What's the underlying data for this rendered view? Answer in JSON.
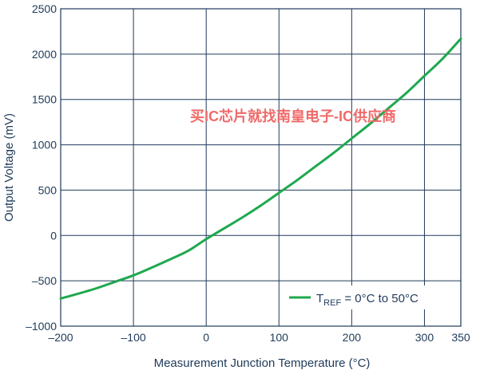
{
  "chart_data": {
    "type": "line",
    "xlabel": "Measurement Junction Temperature (°C)",
    "ylabel": "Output Voltage (mV)",
    "xlim": [
      -200,
      350
    ],
    "ylim": [
      -1000,
      2500
    ],
    "x_ticks": [
      -200,
      -100,
      0,
      100,
      200,
      300,
      350
    ],
    "x_tick_labels": [
      "–200",
      "–100",
      "0",
      "100",
      "200",
      "300",
      "350"
    ],
    "y_ticks": [
      -1000,
      -500,
      0,
      500,
      1000,
      1500,
      2000,
      2500
    ],
    "y_tick_labels": [
      "–1000",
      "–500",
      "0",
      "500",
      "1000",
      "1500",
      "2000",
      "2500"
    ],
    "x_grid": [
      -200,
      -100,
      0,
      100,
      200,
      300,
      350
    ],
    "y_grid": [
      -1000,
      -500,
      0,
      500,
      1000,
      1500,
      2000,
      2500
    ],
    "grid": true,
    "legend_position": "bottom-right",
    "line_color": "#1fa84f",
    "grid_color": "#1f3a5a",
    "series": [
      {
        "legend": {
          "main": "T",
          "sub": "REF",
          "rest": " = 0°C to 50°C"
        },
        "x": [
          -200,
          -175,
          -150,
          -125,
          -100,
          -75,
          -50,
          -25,
          0,
          25,
          50,
          75,
          100,
          125,
          150,
          175,
          200,
          225,
          250,
          275,
          300,
          325,
          350
        ],
        "y": [
          -695,
          -640,
          -580,
          -510,
          -440,
          -355,
          -265,
          -170,
          -40,
          80,
          200,
          330,
          470,
          610,
          760,
          910,
          1070,
          1230,
          1400,
          1570,
          1760,
          1950,
          2170
        ]
      }
    ]
  },
  "watermark": "买IC芯片就找南皇电子-IC供应商"
}
